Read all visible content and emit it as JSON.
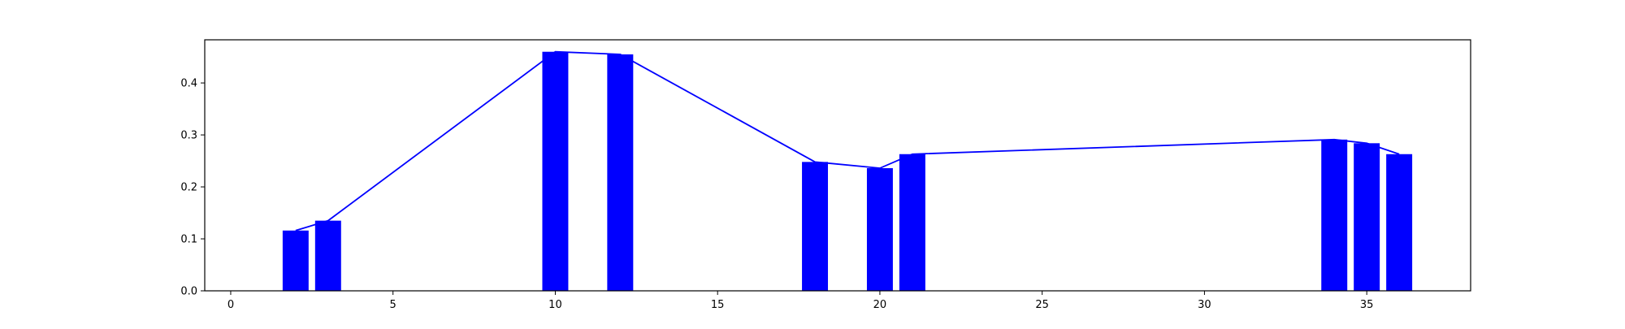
{
  "chart_data": {
    "type": "bar",
    "title": "",
    "xlabel": "",
    "ylabel": "",
    "xlim": [
      -0.8,
      38.2
    ],
    "ylim": [
      0,
      0.483
    ],
    "grid": false,
    "legend": "none",
    "bar_width": 0.8,
    "x": [
      2,
      3,
      10,
      12,
      18,
      20,
      21,
      34,
      35,
      36
    ],
    "values": [
      0.116,
      0.135,
      0.46,
      0.455,
      0.248,
      0.236,
      0.263,
      0.291,
      0.284,
      0.263
    ],
    "line_overlay": true,
    "x_ticks": [
      0,
      5,
      10,
      15,
      20,
      25,
      30,
      35
    ],
    "x_tick_labels": [
      "0",
      "5",
      "10",
      "15",
      "20",
      "25",
      "30",
      "35"
    ],
    "y_ticks": [
      0.0,
      0.1,
      0.2,
      0.3,
      0.4
    ],
    "y_tick_labels": [
      "0.0",
      "0.1",
      "0.2",
      "0.3",
      "0.4"
    ],
    "colors": {
      "bar": "#0000ff",
      "line": "#0000ff",
      "axes": "#000000"
    }
  }
}
